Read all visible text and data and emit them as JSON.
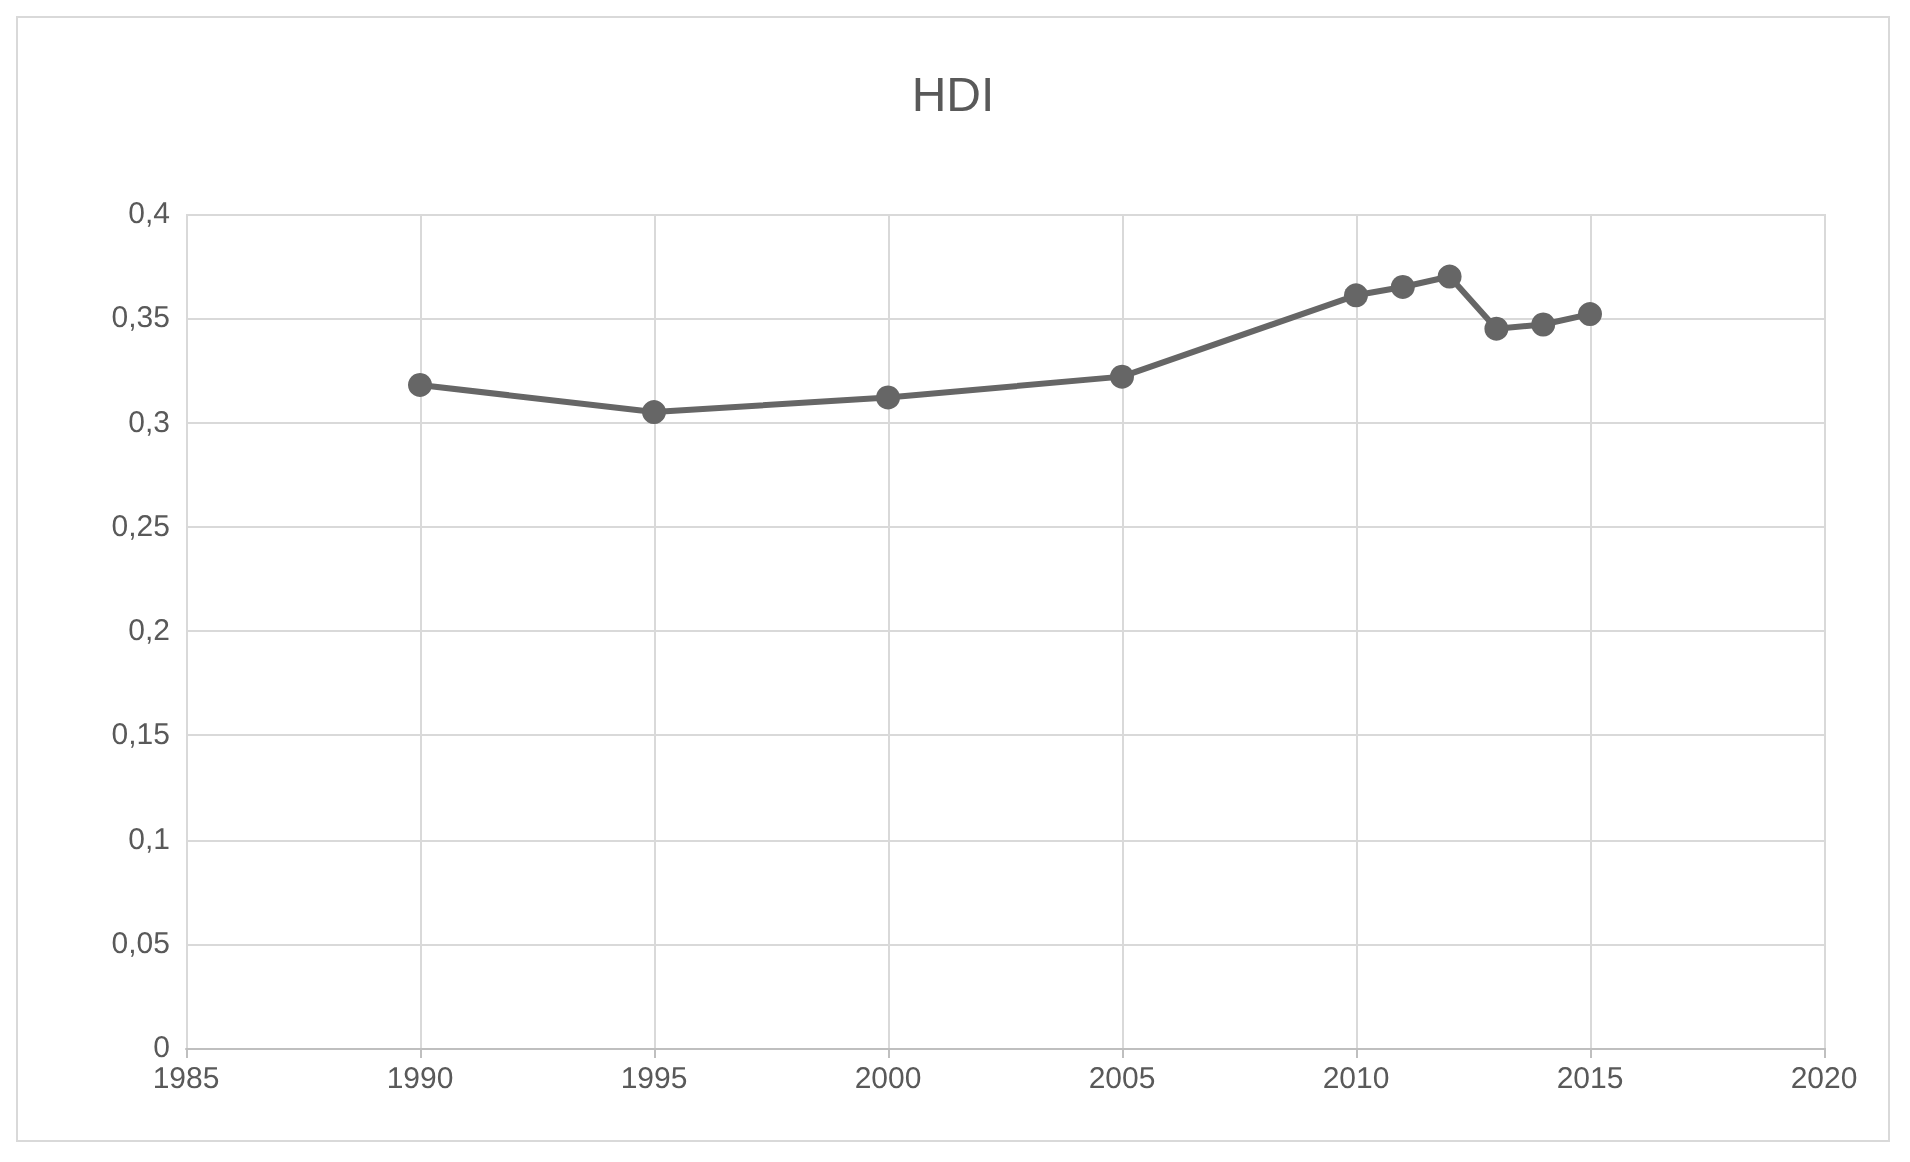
{
  "chart_data": {
    "type": "line",
    "title": "HDI",
    "x": [
      1990,
      1995,
      2000,
      2005,
      2010,
      2011,
      2012,
      2013,
      2014,
      2015
    ],
    "series": [
      {
        "color": "#666666",
        "values": [
          0.318,
          0.305,
          0.312,
          0.322,
          0.361,
          0.365,
          0.37,
          0.345,
          0.347,
          0.352
        ]
      }
    ],
    "xlim": [
      1985,
      2020
    ],
    "xticks": [
      1985,
      1990,
      1995,
      2000,
      2005,
      2010,
      2015,
      2020
    ],
    "ylim": [
      0,
      0.4
    ],
    "yticks": [
      0,
      {
        "value": 0.05,
        "label": "0,05"
      },
      {
        "value": 0.1,
        "label": "0,1"
      },
      {
        "value": 0.15,
        "label": "0,15"
      },
      {
        "value": 0.2,
        "label": "0,2"
      },
      {
        "value": 0.25,
        "label": "0,25"
      },
      {
        "value": 0.3,
        "label": "0,3"
      },
      {
        "value": 0.35,
        "label": "0,35"
      },
      {
        "value": 0.4,
        "label": "0,4"
      }
    ],
    "grid": true,
    "marker": "circle",
    "line_style": "solid"
  }
}
